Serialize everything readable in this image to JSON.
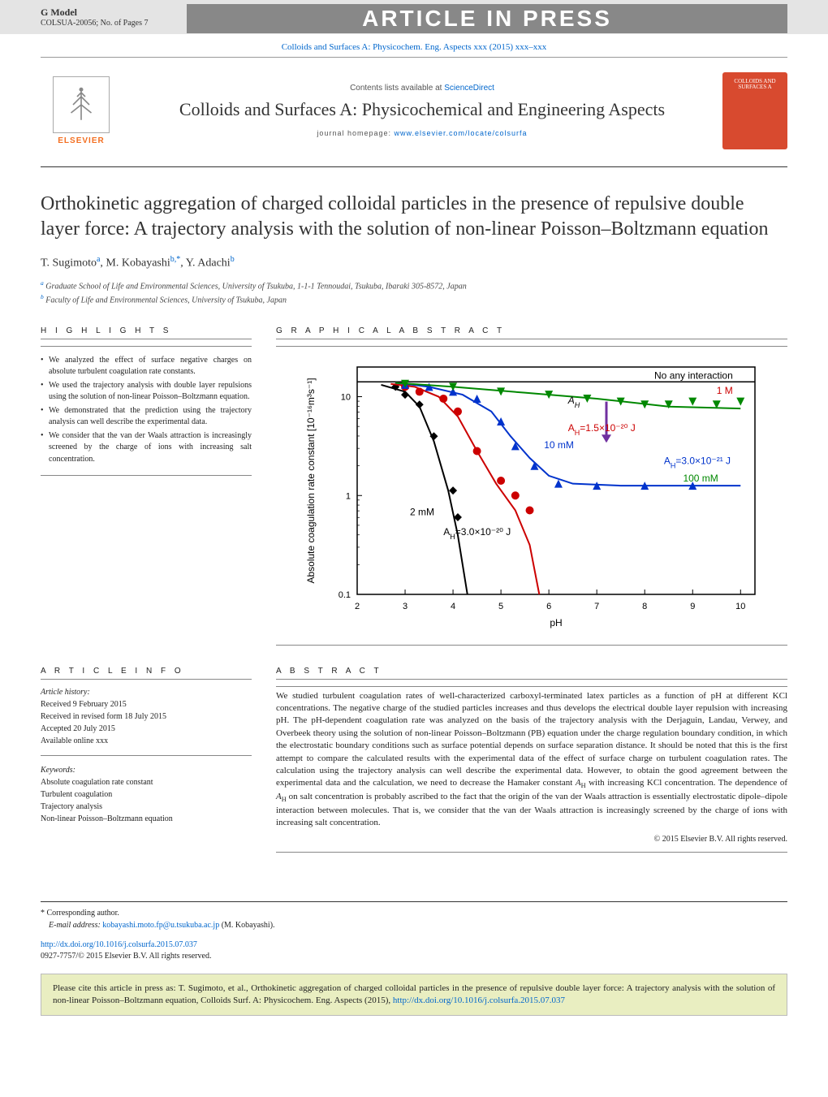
{
  "header": {
    "gmodel": "G Model",
    "article_no": "COLSUA-20056;   No. of Pages 7",
    "in_press": "ARTICLE IN PRESS",
    "journal_link": "Colloids and Surfaces A: Physicochem. Eng. Aspects xxx (2015) xxx–xxx"
  },
  "journal": {
    "contents_prefix": "Contents lists available at ",
    "contents_link": "ScienceDirect",
    "title": "Colloids and Surfaces A: Physicochemical and Engineering Aspects",
    "homepage_prefix": "journal homepage: ",
    "homepage_link": "www.elsevier.com/locate/colsurfa",
    "elsevier": "ELSEVIER"
  },
  "article": {
    "title": "Orthokinetic aggregation of charged colloidal particles in the presence of repulsive double layer force: A trajectory analysis with the solution of non-linear Poisson–Boltzmann equation",
    "authors_html": "T. Sugimoto",
    "author_a_sup": "a",
    "author_b": ", M. Kobayashi",
    "author_b_sup": "b,*",
    "author_c": ", Y. Adachi",
    "author_c_sup": "b",
    "aff_a_sup": "a",
    "aff_a": " Graduate School of Life and Environmental Sciences, University of Tsukuba, 1-1-1 Tennoudai, Tsukuba, Ibaraki 305-8572, Japan",
    "aff_b_sup": "b",
    "aff_b": " Faculty of Life and Environmental Sciences, University of Tsukuba, Japan"
  },
  "highlights": {
    "heading": "H I G H L I G H T S",
    "items": [
      "We analyzed the effect of surface negative charges on absolute turbulent coagulation rate constants.",
      "We used the trajectory analysis with double layer repulsions using the solution of non-linear Poisson–Boltzmann equation.",
      "We demonstrated that the prediction using the trajectory analysis can well describe the experimental data.",
      "We consider that the van der Waals attraction is increasingly screened by the charge of ions with increasing salt concentration."
    ]
  },
  "graphical_abstract": {
    "heading": "G R A P H I C A L   A B S T R A C T"
  },
  "chart": {
    "type": "scatter-line",
    "xlabel": "pH",
    "ylabel": "Absolute coagulation rate constant [10⁻¹⁶m³s⁻¹]",
    "xlim": [
      2,
      10.3
    ],
    "ylim_log": [
      -1,
      1.3
    ],
    "xtick_step": 1,
    "yticks": [
      0.1,
      1,
      10
    ],
    "ytick_labels": [
      "0.1",
      "1",
      "10"
    ],
    "background_color": "#ffffff",
    "axis_color": "#000000",
    "label_fontsize": 12,
    "tick_fontsize": 11,
    "annotations": [
      {
        "text": "No any interaction",
        "x": 8.2,
        "y_log": 1.18,
        "color": "#000"
      },
      {
        "text": "1 M",
        "x": 9.5,
        "y_log": 1.03,
        "color": "#cc0000"
      },
      {
        "text": "A_H",
        "x": 6.4,
        "y_log": 0.93,
        "color": "#000",
        "italic": true
      },
      {
        "text": "A_H=1.5×10⁻²⁰ J",
        "x": 6.4,
        "y_log": 0.65,
        "color": "#cc0000"
      },
      {
        "text": "10 mM",
        "x": 5.9,
        "y_log": 0.48,
        "color": "#0033cc"
      },
      {
        "text": "A_H=3.0×10⁻²¹ J",
        "x": 8.4,
        "y_log": 0.32,
        "color": "#0033cc"
      },
      {
        "text": "100 mM",
        "x": 8.8,
        "y_log": 0.14,
        "color": "#008800"
      },
      {
        "text": "2 mM",
        "x": 3.1,
        "y_log": -0.2,
        "color": "#000"
      },
      {
        "text": "A_H=3.0×10⁻²⁰ J",
        "x": 3.8,
        "y_log": -0.4,
        "color": "#000"
      }
    ],
    "no_interaction_y_log": 1.15,
    "series": [
      {
        "name": "2mM",
        "marker": "diamond",
        "color": "#000000",
        "line_color": "#000000",
        "points": [
          [
            2.8,
            1.1
          ],
          [
            3.0,
            1.02
          ],
          [
            3.3,
            0.92
          ],
          [
            3.6,
            0.6
          ],
          [
            4.0,
            0.05
          ],
          [
            4.1,
            -0.22
          ]
        ],
        "line_x": [
          2.5,
          3.0,
          3.3,
          3.6,
          3.9,
          4.1,
          4.3
        ],
        "line_y": [
          1.12,
          1.05,
          0.9,
          0.55,
          0.05,
          -0.4,
          -1.0
        ]
      },
      {
        "name": "10mM",
        "marker": "circle",
        "color": "#cc0000",
        "line_color": "#cc0000",
        "points": [
          [
            3.0,
            1.1
          ],
          [
            3.3,
            1.05
          ],
          [
            3.8,
            0.98
          ],
          [
            4.1,
            0.85
          ],
          [
            4.5,
            0.45
          ],
          [
            5.0,
            0.15
          ],
          [
            5.3,
            0.0
          ],
          [
            5.6,
            -0.15
          ]
        ],
        "line_x": [
          2.7,
          3.2,
          3.7,
          4.1,
          4.5,
          4.9,
          5.3,
          5.6,
          5.8
        ],
        "line_y": [
          1.13,
          1.1,
          1.0,
          0.8,
          0.45,
          0.12,
          -0.15,
          -0.5,
          -1.0
        ]
      },
      {
        "name": "100mM",
        "marker": "triangle",
        "color": "#0033cc",
        "line_color": "#0033cc",
        "points": [
          [
            3.0,
            1.12
          ],
          [
            3.5,
            1.1
          ],
          [
            4.0,
            1.05
          ],
          [
            4.5,
            0.98
          ],
          [
            5.0,
            0.75
          ],
          [
            5.3,
            0.5
          ],
          [
            5.7,
            0.3
          ],
          [
            6.2,
            0.12
          ],
          [
            7.0,
            0.1
          ],
          [
            8.0,
            0.1
          ],
          [
            9.0,
            0.1
          ]
        ],
        "line_x": [
          2.8,
          3.5,
          4.2,
          4.8,
          5.2,
          5.6,
          6.0,
          6.5,
          7.5,
          9.0,
          10.0
        ],
        "line_y": [
          1.14,
          1.1,
          1.02,
          0.85,
          0.6,
          0.38,
          0.2,
          0.12,
          0.1,
          0.1,
          0.1
        ]
      },
      {
        "name": "1M",
        "marker": "triangle-down",
        "color": "#008800",
        "line_color": "#008800",
        "points": [
          [
            3.0,
            1.13
          ],
          [
            4.0,
            1.1
          ],
          [
            5.0,
            1.05
          ],
          [
            6.0,
            1.02
          ],
          [
            6.8,
            0.98
          ],
          [
            7.5,
            0.95
          ],
          [
            8.0,
            0.92
          ],
          [
            8.5,
            0.92
          ],
          [
            9.0,
            0.95
          ],
          [
            9.5,
            0.92
          ],
          [
            10.0,
            0.95
          ]
        ],
        "line_x": [
          2.8,
          4.0,
          5.5,
          7.0,
          8.5,
          10.0
        ],
        "line_y": [
          1.14,
          1.1,
          1.04,
          0.98,
          0.9,
          0.88
        ]
      }
    ]
  },
  "article_info": {
    "heading": "A R T I C L E   I N F O",
    "history_label": "Article history:",
    "history": [
      "Received 9 February 2015",
      "Received in revised form 18 July 2015",
      "Accepted 20 July 2015",
      "Available online xxx"
    ],
    "keywords_label": "Keywords:",
    "keywords": [
      "Absolute coagulation rate constant",
      "Turbulent coagulation",
      "Trajectory analysis",
      "Non-linear Poisson–Boltzmann equation"
    ]
  },
  "abstract": {
    "heading": "A B S T R A C T",
    "text": "We studied turbulent coagulation rates of well-characterized carboxyl-terminated latex particles as a function of pH at different KCl concentrations. The negative charge of the studied particles increases and thus develops the electrical double layer repulsion with increasing pH. The pH-dependent coagulation rate was analyzed on the basis of the trajectory analysis with the Derjaguin, Landau, Verwey, and Overbeek theory using the solution of non-linear Poisson–Boltzmann (PB) equation under the charge regulation boundary condition, in which the electrostatic boundary conditions such as surface potential depends on surface separation distance. It should be noted that this is the first attempt to compare the calculated results with the experimental data of the effect of surface charge on turbulent coagulation rates. The calculation using the trajectory analysis can well describe the experimental data. However, to obtain the good agreement between the experimental data and the calculation, we need to decrease the Hamaker constant A_H with increasing KCl concentration. The dependence of A_H on salt concentration is probably ascribed to the fact that the origin of the van der Waals attraction is essentially electrostatic dipole–dipole interaction between molecules. That is, we consider that the van der Waals attraction is increasingly screened by the charge of ions with increasing salt concentration.",
    "copyright": "© 2015 Elsevier B.V. All rights reserved."
  },
  "footer": {
    "corresponding": "* Corresponding author.",
    "email_prefix": "E-mail address: ",
    "email": "kobayashi.moto.fp@u.tsukuba.ac.jp",
    "email_suffix": " (M. Kobayashi).",
    "doi_link": "http://dx.doi.org/10.1016/j.colsurfa.2015.07.037",
    "issn": "0927-7757/© 2015 Elsevier B.V. All rights reserved."
  },
  "citation": {
    "text_prefix": "Please cite this article in press as: T. Sugimoto, et al., Orthokinetic aggregation of charged colloidal particles in the presence of repulsive double layer force: A trajectory analysis with the solution of non-linear Poisson–Boltzmann equation, Colloids Surf. A: Physicochem. Eng. Aspects (2015), ",
    "link": "http://dx.doi.org/10.1016/j.colsurfa.2015.07.037"
  }
}
